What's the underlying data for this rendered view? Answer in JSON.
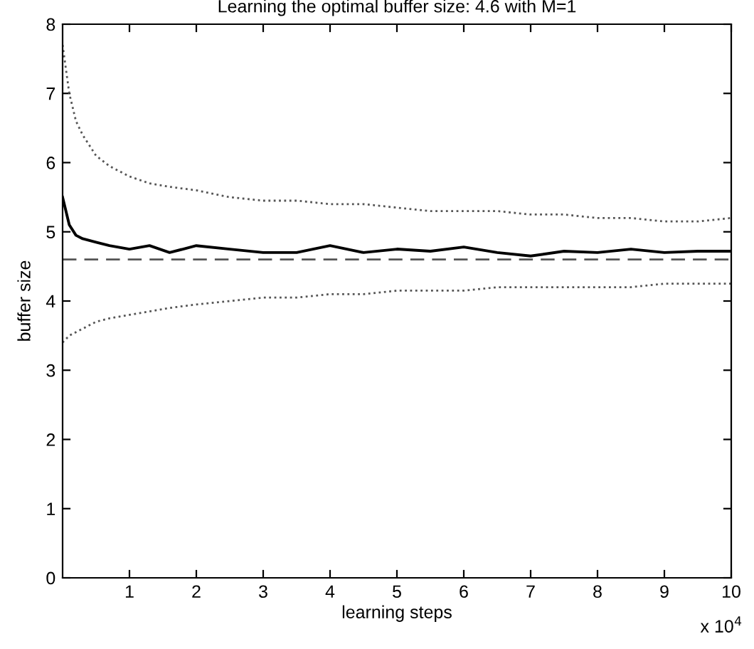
{
  "chart_data": {
    "type": "line",
    "title": "Learning the optimal buffer size: 4.6 with M=1",
    "xlabel": "learning steps",
    "ylabel": "buffer size",
    "annotations": [
      "x 10$^{4}$"
    ],
    "x": [
      0,
      0.1,
      0.2,
      0.3,
      0.5,
      0.7,
      1,
      1.3,
      1.6,
      2,
      2.5,
      3,
      3.5,
      4,
      4.5,
      5,
      5.5,
      6,
      6.5,
      7,
      7.5,
      8,
      8.5,
      9,
      9.5,
      10
    ],
    "series": [
      {
        "color": "#555555",
        "line_style": "dotted",
        "values": [
          7.7,
          7.0,
          6.6,
          6.4,
          6.1,
          5.95,
          5.8,
          5.7,
          5.65,
          5.6,
          5.5,
          5.45,
          5.45,
          5.4,
          5.4,
          5.35,
          5.3,
          5.3,
          5.3,
          5.25,
          5.25,
          5.2,
          5.2,
          5.15,
          5.15,
          5.2
        ]
      },
      {
        "color": "#000000",
        "line_style": "solid",
        "values": [
          5.5,
          5.1,
          4.95,
          4.9,
          4.85,
          4.8,
          4.75,
          4.8,
          4.7,
          4.8,
          4.75,
          4.7,
          4.7,
          4.8,
          4.7,
          4.75,
          4.72,
          4.78,
          4.7,
          4.65,
          4.72,
          4.7,
          4.75,
          4.7,
          4.72,
          4.72
        ]
      },
      {
        "color": "#555555",
        "line_style": "dotted",
        "values": [
          3.4,
          3.5,
          3.55,
          3.6,
          3.7,
          3.75,
          3.8,
          3.85,
          3.9,
          3.95,
          4.0,
          4.05,
          4.05,
          4.1,
          4.1,
          4.15,
          4.15,
          4.15,
          4.2,
          4.2,
          4.2,
          4.2,
          4.2,
          4.25,
          4.25,
          4.25
        ]
      }
    ],
    "ref_lines": [
      {
        "axis": "y",
        "value": 4.6,
        "color": "#555555",
        "line_style": "dashed"
      }
    ],
    "xlim": [
      0,
      10
    ],
    "xticks": [
      1,
      2,
      3,
      4,
      5,
      6,
      7,
      8,
      9,
      10
    ],
    "ylim": [
      0,
      8
    ],
    "yticks": [
      0,
      1,
      2,
      3,
      4,
      5,
      6,
      7,
      8
    ],
    "grid": false,
    "marker": "none"
  }
}
